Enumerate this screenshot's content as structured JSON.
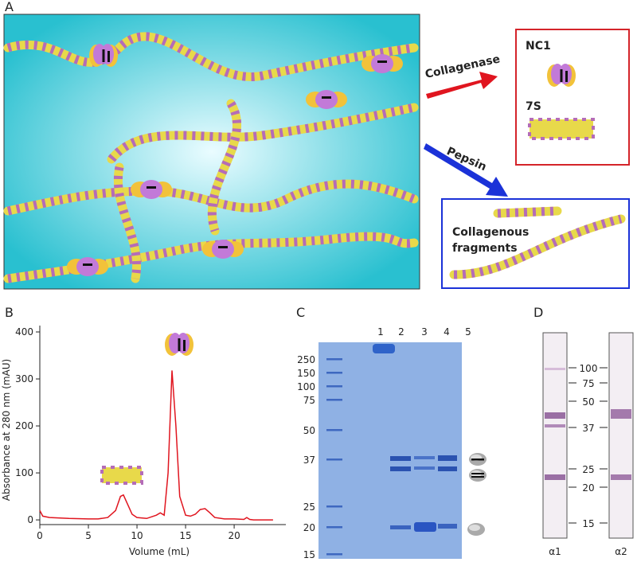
{
  "panel_labels": [
    "A",
    "B",
    "C",
    "D"
  ],
  "diagram": {
    "enzymes": [
      "Collagenase",
      "Pepsin"
    ],
    "collagenase_products": [
      "NC1",
      "7S"
    ],
    "pepsin_products": [
      "Collagenous",
      "fragments"
    ]
  },
  "chart_data": {
    "type": "line",
    "x_label": "Volume (mL)",
    "y_label": "Absorbance at 280 nm (mAU)",
    "x": [
      0,
      0.3,
      1,
      3,
      5,
      6,
      7,
      7.8,
      8.3,
      8.6,
      9,
      9.5,
      10,
      11,
      12,
      12.4,
      12.8,
      13.2,
      13.6,
      14,
      14.4,
      15,
      15.5,
      16,
      16.5,
      17,
      17.5,
      18,
      19,
      20,
      21,
      21.3,
      21.6,
      22,
      24
    ],
    "values": [
      20,
      8,
      5,
      3,
      2,
      2,
      5,
      20,
      50,
      53,
      35,
      12,
      5,
      3,
      10,
      15,
      10,
      100,
      318,
      200,
      50,
      10,
      8,
      12,
      22,
      24,
      15,
      5,
      2,
      2,
      1,
      5,
      1,
      0,
      0
    ],
    "color": "#e0151f",
    "xlim": [
      0,
      24.5
    ],
    "ylim": [
      -10,
      400
    ],
    "xticks": [
      0,
      5,
      10,
      15,
      20
    ],
    "yticks": [
      0,
      100,
      200,
      300,
      400
    ]
  },
  "gel_c": {
    "lanes": [
      "1",
      "2",
      "3",
      "4",
      "5"
    ],
    "markers": [
      "250",
      "150",
      "100",
      "75",
      "50",
      "37",
      "25",
      "20",
      "15"
    ]
  },
  "gel_d": {
    "markers": [
      "100",
      "75",
      "50",
      "37",
      "25",
      "20",
      "15"
    ],
    "strips": [
      "α1",
      "α2"
    ]
  }
}
